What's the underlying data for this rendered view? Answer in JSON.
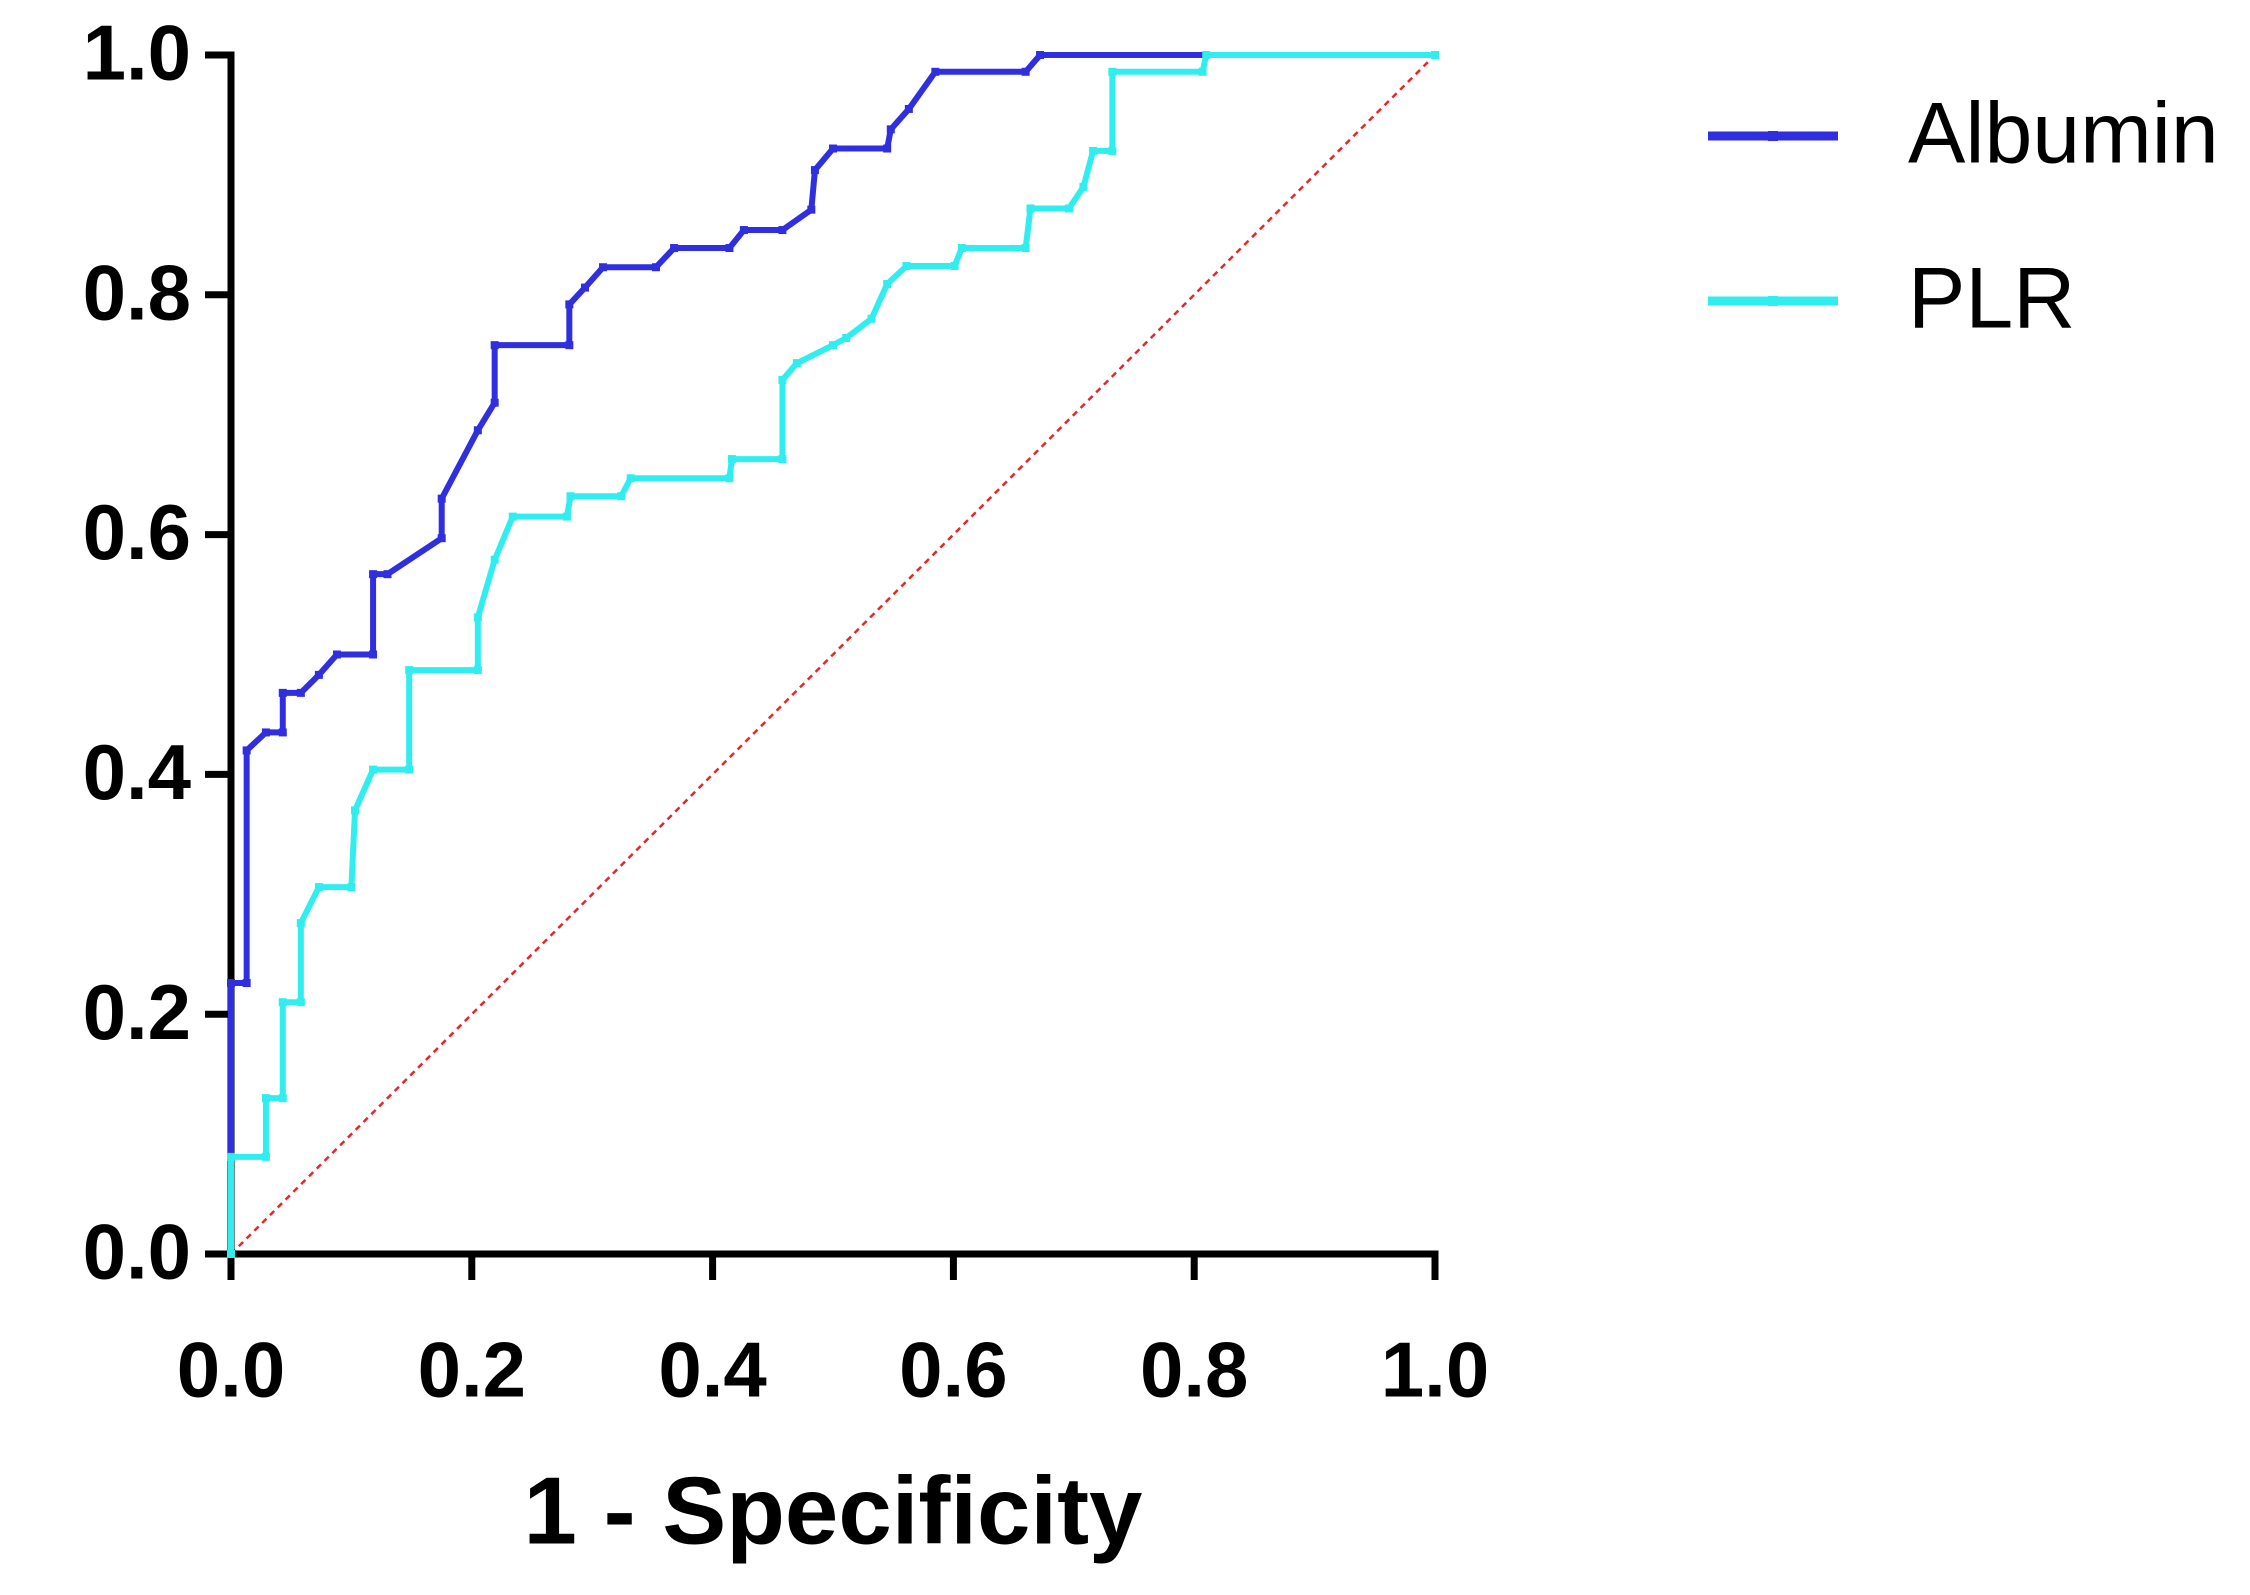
{
  "chart_data": {
    "type": "line",
    "x_label": "1 - Specificity",
    "legend": "right",
    "reference_line": true,
    "xlim": [
      0,
      1
    ],
    "ylim": [
      0,
      1
    ],
    "xticks": [
      {
        "value": 0,
        "label": "0.0"
      },
      {
        "value": 0.2,
        "label": "0.2"
      },
      {
        "value": 0.4,
        "label": "0.4"
      },
      {
        "value": 0.6,
        "label": "0.6"
      },
      {
        "value": 0.8,
        "label": "0.8"
      },
      {
        "value": 1,
        "label": "1.0"
      }
    ],
    "yticks": [
      {
        "value": 0,
        "label": "0.0"
      },
      {
        "value": 0.2,
        "label": "0.2"
      },
      {
        "value": 0.4,
        "label": "0.4"
      },
      {
        "value": 0.6,
        "label": "0.6"
      },
      {
        "value": 0.8,
        "label": "0.8"
      },
      {
        "value": 1,
        "label": "1.0"
      }
    ],
    "series": [
      {
        "name": "Albumin",
        "color": "#2f2fe0",
        "x": [
          0,
          0,
          0.013,
          0.013,
          0.029,
          0.043,
          0.043,
          0.058,
          0.073,
          0.088,
          0.118,
          0.118,
          0.13,
          0.175,
          0.175,
          0.205,
          0.219,
          0.219,
          0.281,
          0.281,
          0.294,
          0.309,
          0.353,
          0.368,
          0.414,
          0.426,
          0.458,
          0.482,
          0.485,
          0.5,
          0.545,
          0.548,
          0.563,
          0.585,
          0.66,
          0.672,
          1
        ],
        "values": [
          0,
          0.226,
          0.226,
          0.42,
          0.435,
          0.435,
          0.468,
          0.468,
          0.483,
          0.5,
          0.5,
          0.567,
          0.567,
          0.597,
          0.63,
          0.687,
          0.71,
          0.758,
          0.758,
          0.792,
          0.806,
          0.823,
          0.823,
          0.839,
          0.839,
          0.854,
          0.854,
          0.871,
          0.904,
          0.922,
          0.922,
          0.938,
          0.955,
          0.986,
          0.986,
          1,
          1
        ]
      },
      {
        "name": "PLR",
        "color": "#30eef0",
        "x": [
          0,
          0,
          0.029,
          0.029,
          0.043,
          0.043,
          0.058,
          0.058,
          0.073,
          0.1,
          0.103,
          0.118,
          0.148,
          0.148,
          0.205,
          0.205,
          0.219,
          0.234,
          0.279,
          0.282,
          0.324,
          0.332,
          0.414,
          0.416,
          0.458,
          0.458,
          0.47,
          0.5,
          0.511,
          0.532,
          0.545,
          0.561,
          0.601,
          0.607,
          0.66,
          0.664,
          0.696,
          0.708,
          0.716,
          0.732,
          0.732,
          0.807,
          0.81,
          1
        ],
        "values": [
          0,
          0.081,
          0.081,
          0.13,
          0.13,
          0.21,
          0.21,
          0.276,
          0.306,
          0.306,
          0.37,
          0.404,
          0.404,
          0.487,
          0.487,
          0.531,
          0.579,
          0.615,
          0.615,
          0.632,
          0.632,
          0.647,
          0.647,
          0.663,
          0.663,
          0.729,
          0.743,
          0.758,
          0.764,
          0.78,
          0.809,
          0.824,
          0.824,
          0.839,
          0.839,
          0.872,
          0.872,
          0.89,
          0.92,
          0.92,
          0.986,
          0.986,
          1,
          1
        ]
      }
    ]
  }
}
